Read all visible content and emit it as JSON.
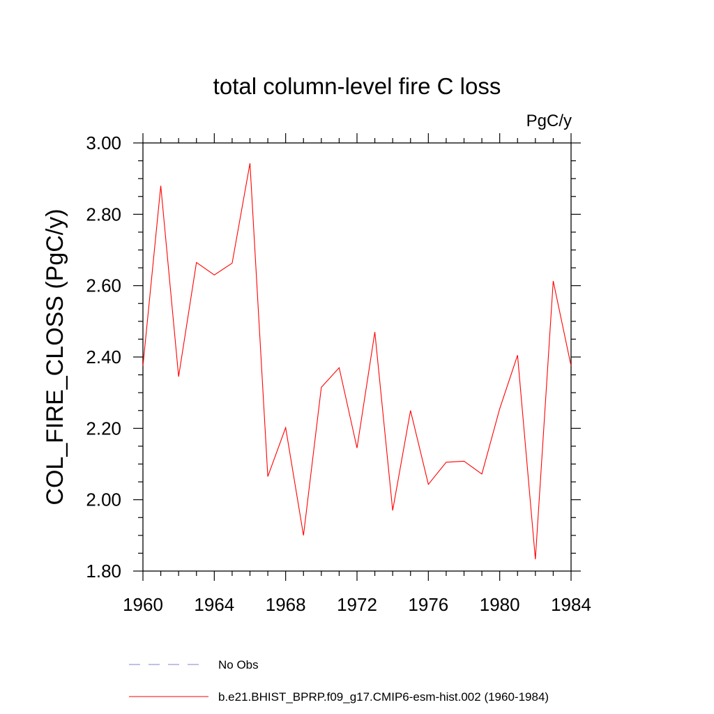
{
  "chart_data": {
    "type": "line",
    "title": "total column-level fire C loss",
    "units": "PgC/y",
    "xlabel": "",
    "ylabel": "COL_FIRE_CLOSS  (PgC/y)",
    "xlim": [
      1960,
      1984
    ],
    "ylim": [
      1.8,
      3.0
    ],
    "x_ticks": [
      1960,
      1964,
      1968,
      1972,
      1976,
      1980,
      1984
    ],
    "x_tick_labels": [
      "1960",
      "1964",
      "1968",
      "1972",
      "1976",
      "1980",
      "1984"
    ],
    "y_ticks": [
      1.8,
      2.0,
      2.2,
      2.4,
      2.6,
      2.8,
      3.0
    ],
    "y_tick_labels": [
      "1.80",
      "2.00",
      "2.20",
      "2.40",
      "2.60",
      "2.80",
      "3.00"
    ],
    "x_minor_step": 1,
    "y_minor_step": 0.05,
    "grid": false,
    "legend_position": "bottom",
    "series": [
      {
        "name": "b.e21.BHIST_BPRP.f09_g17.CMIP6-esm-hist.002 (1960-1984)",
        "color": "#ff0000",
        "style": "solid",
        "x": [
          1960,
          1961,
          1962,
          1963,
          1964,
          1965,
          1966,
          1967,
          1968,
          1969,
          1970,
          1971,
          1972,
          1973,
          1974,
          1975,
          1976,
          1977,
          1978,
          1979,
          1980,
          1981,
          1982,
          1983,
          1984
        ],
        "values": [
          2.375,
          2.88,
          2.345,
          2.665,
          2.63,
          2.663,
          2.943,
          2.065,
          2.202,
          1.9,
          2.315,
          2.37,
          2.145,
          2.47,
          1.97,
          2.25,
          2.043,
          2.105,
          2.108,
          2.072,
          2.255,
          2.405,
          1.833,
          2.613,
          2.375
        ]
      }
    ],
    "legend": [
      {
        "label": "No Obs",
        "color": "#8080d0",
        "style": "dashed"
      },
      {
        "label": "b.e21.BHIST_BPRP.f09_g17.CMIP6-esm-hist.002 (1960-1984)",
        "color": "#ff0000",
        "style": "solid"
      }
    ]
  }
}
